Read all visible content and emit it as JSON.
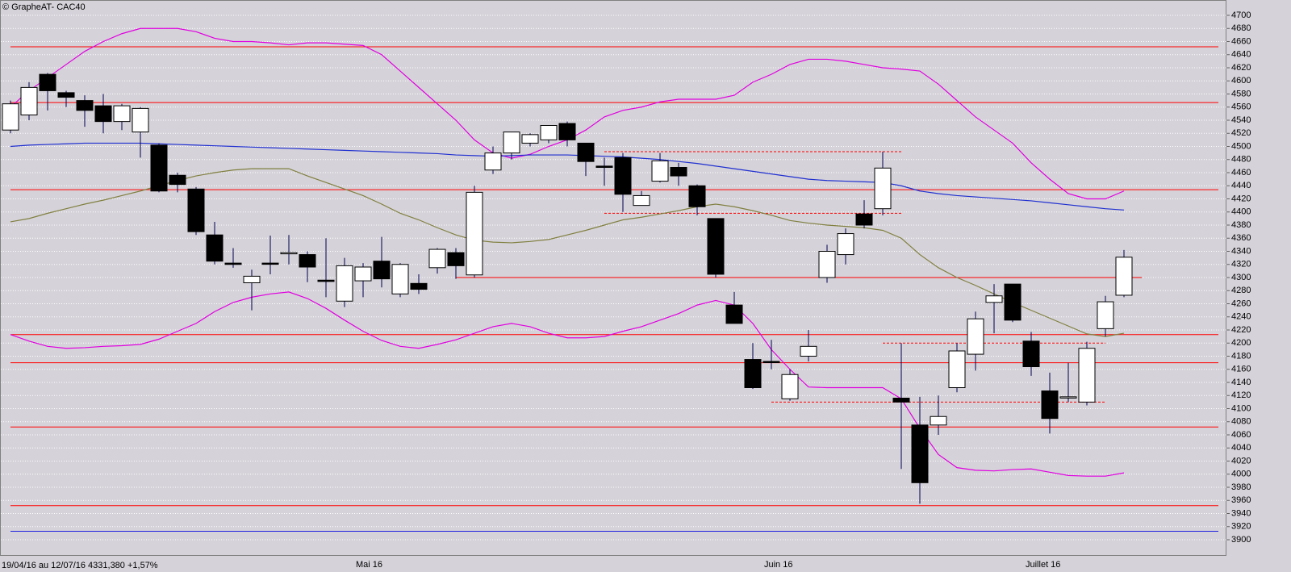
{
  "chart_data": {
    "type": "candlestick",
    "title": "© GrapheAT- CAC40",
    "footer": "19/04/16 au 12/07/16  4331,380  +1,57%",
    "month_labels": [
      "Mai 16",
      "Juin 16",
      "Juillet 16"
    ],
    "categories": [
      null,
      null,
      null,
      null,
      null,
      null,
      null,
      null,
      null,
      null,
      null,
      null,
      null,
      null,
      null,
      null,
      null,
      null,
      null,
      null,
      null,
      null,
      null,
      null,
      null,
      null,
      null,
      null,
      null,
      null,
      null,
      null,
      null,
      null,
      null,
      null,
      null,
      null,
      null,
      null,
      null,
      null,
      null,
      null,
      null,
      null,
      null,
      null,
      null,
      null,
      null,
      null,
      null,
      null,
      null,
      null,
      null,
      null,
      null,
      null,
      null
    ],
    "open": [
      4525,
      4548,
      4610,
      4582,
      4570,
      4562,
      4538,
      4522,
      4502,
      4456,
      4435,
      4365,
      4322,
      4292,
      4322,
      4337,
      4335,
      4296,
      4264,
      4295,
      4325,
      4275,
      4291,
      4315,
      4338,
      4304,
      4464,
      4490,
      4505,
      4510,
      4535,
      4505,
      4470,
      4483,
      4410,
      4447,
      4468,
      4440,
      4390,
      4258,
      4175,
      4172,
      4115,
      4180,
      4300,
      4335,
      4397,
      4405,
      4116,
      4075,
      4075,
      4132,
      4183,
      4262,
      4290,
      4203,
      4127,
      4117,
      4110,
      4222,
      4273
    ],
    "high": [
      4570,
      4598,
      4612,
      4585,
      4578,
      4580,
      4565,
      4560,
      4505,
      4460,
      4438,
      4385,
      4345,
      4312,
      4364,
      4365,
      4340,
      4360,
      4330,
      4322,
      4362,
      4322,
      4305,
      4345,
      4345,
      4440,
      4500,
      4522,
      4520,
      4532,
      4538,
      4505,
      4483,
      4490,
      4432,
      4490,
      4475,
      4442,
      4390,
      4278,
      4200,
      4205,
      4160,
      4220,
      4350,
      4375,
      4418,
      4492,
      4200,
      4118,
      4120,
      4200,
      4248,
      4290,
      4290,
      4217,
      4155,
      4170,
      4202,
      4272,
      4342
    ],
    "low": [
      4520,
      4540,
      4555,
      4560,
      4530,
      4520,
      4525,
      4483,
      4430,
      4430,
      4365,
      4320,
      4315,
      4250,
      4305,
      4320,
      4293,
      4270,
      4255,
      4270,
      4285,
      4270,
      4275,
      4306,
      4298,
      4300,
      4458,
      4480,
      4500,
      4505,
      4500,
      4455,
      4440,
      4400,
      4410,
      4445,
      4440,
      4395,
      4300,
      4230,
      4130,
      4160,
      4112,
      4172,
      4292,
      4320,
      4375,
      4395,
      4008,
      3955,
      4060,
      4125,
      4158,
      4215,
      4232,
      4150,
      4062,
      4110,
      4105,
      4210,
      4270
    ],
    "close": [
      4565,
      4590,
      4585,
      4575,
      4555,
      4538,
      4562,
      4558,
      4432,
      4442,
      4370,
      4325,
      4320,
      4302,
      4321,
      4338,
      4316,
      4294,
      4318,
      4316,
      4298,
      4320,
      4282,
      4343,
      4318,
      4430,
      4490,
      4522,
      4518,
      4532,
      4510,
      4477,
      4468,
      4427,
      4425,
      4478,
      4455,
      4408,
      4305,
      4230,
      4132,
      4171,
      4152,
      4195,
      4340,
      4367,
      4380,
      4467,
      4110,
      3987,
      4088,
      4188,
      4237,
      4272,
      4235,
      4164,
      4085,
      4118,
      4192,
      4263,
      4331
    ],
    "series": [
      {
        "color": "#e000e0",
        "values": [
          4560,
          4585,
          4605,
          4625,
          4645,
          4660,
          4672,
          4680,
          4680,
          4680,
          4675,
          4665,
          4660,
          4660,
          4658,
          4655,
          4658,
          4658,
          4656,
          4654,
          4640,
          4615,
          4590,
          4565,
          4540,
          4510,
          4490,
          4482,
          4488,
          4500,
          4510,
          4525,
          4545,
          4555,
          4560,
          4568,
          4572,
          4572,
          4572,
          4578,
          4598,
          4610,
          4625,
          4633,
          4633,
          4630,
          4625,
          4620,
          4618,
          4615,
          4595,
          4570,
          4545,
          4525,
          4505,
          4475,
          4450,
          4428,
          4420,
          4420,
          4432
        ]
      },
      {
        "color": "#e000e0",
        "values": [
          4213,
          4203,
          4195,
          4192,
          4193,
          4195,
          4196,
          4198,
          4206,
          4218,
          4230,
          4248,
          4262,
          4270,
          4275,
          4278,
          4268,
          4253,
          4235,
          4218,
          4204,
          4195,
          4192,
          4198,
          4205,
          4215,
          4225,
          4230,
          4225,
          4215,
          4208,
          4208,
          4210,
          4218,
          4225,
          4235,
          4245,
          4258,
          4265,
          4258,
          4230,
          4190,
          4160,
          4133,
          4132,
          4132,
          4132,
          4132,
          4115,
          4070,
          4030,
          4010,
          4006,
          4005,
          4007,
          4008,
          4003,
          3998,
          3997,
          3997,
          4002
        ]
      },
      {
        "color": "#808040",
        "values": [
          4385,
          4390,
          4398,
          4405,
          4412,
          4418,
          4425,
          4432,
          4440,
          4448,
          4455,
          4460,
          4464,
          4466,
          4466,
          4466,
          4455,
          4445,
          4435,
          4425,
          4412,
          4398,
          4388,
          4376,
          4365,
          4357,
          4354,
          4353,
          4355,
          4358,
          4365,
          4372,
          4380,
          4388,
          4392,
          4397,
          4402,
          4408,
          4412,
          4408,
          4402,
          4395,
          4387,
          4383,
          4380,
          4378,
          4376,
          4372,
          4360,
          4335,
          4315,
          4300,
          4288,
          4275,
          4262,
          4250,
          4238,
          4226,
          4214,
          4210,
          4215
        ]
      },
      {
        "color": "#2030d0",
        "values": [
          4500,
          4502,
          4503,
          4504,
          4505,
          4505,
          4505,
          4505,
          4504,
          4503,
          4502,
          4501,
          4500,
          4499,
          4498,
          4497,
          4496,
          4495,
          4494,
          4493,
          4492,
          4491,
          4490,
          4489,
          4487,
          4486,
          4485,
          4486,
          4487,
          4487,
          4487,
          4486,
          4485,
          4484,
          4482,
          4480,
          4477,
          4474,
          4470,
          4466,
          4462,
          4458,
          4454,
          4450,
          4448,
          4447,
          4446,
          4445,
          4440,
          4432,
          4428,
          4425,
          4423,
          4421,
          4419,
          4417,
          4414,
          4411,
          4408,
          4405,
          4403
        ]
      }
    ],
    "levels": [
      4652,
      4567,
      4434,
      4300,
      4213,
      4170,
      4072,
      3952
    ],
    "level_color": "#ff0000",
    "dashed_levels": [
      4492,
      4398,
      4200,
      4110
    ],
    "base_level": 3913,
    "base_color": "#2020e0",
    "ylim": [
      3900,
      4700
    ],
    "yticks": [
      3900,
      3920,
      3940,
      3960,
      3980,
      4000,
      4020,
      4040,
      4060,
      4080,
      4100,
      4120,
      4140,
      4160,
      4180,
      4200,
      4220,
      4240,
      4260,
      4280,
      4300,
      4320,
      4340,
      4360,
      4380,
      4400,
      4420,
      4440,
      4460,
      4480,
      4500,
      4520,
      4540,
      4560,
      4580,
      4600,
      4620,
      4640,
      4660,
      4680,
      4700
    ],
    "grid": true
  }
}
